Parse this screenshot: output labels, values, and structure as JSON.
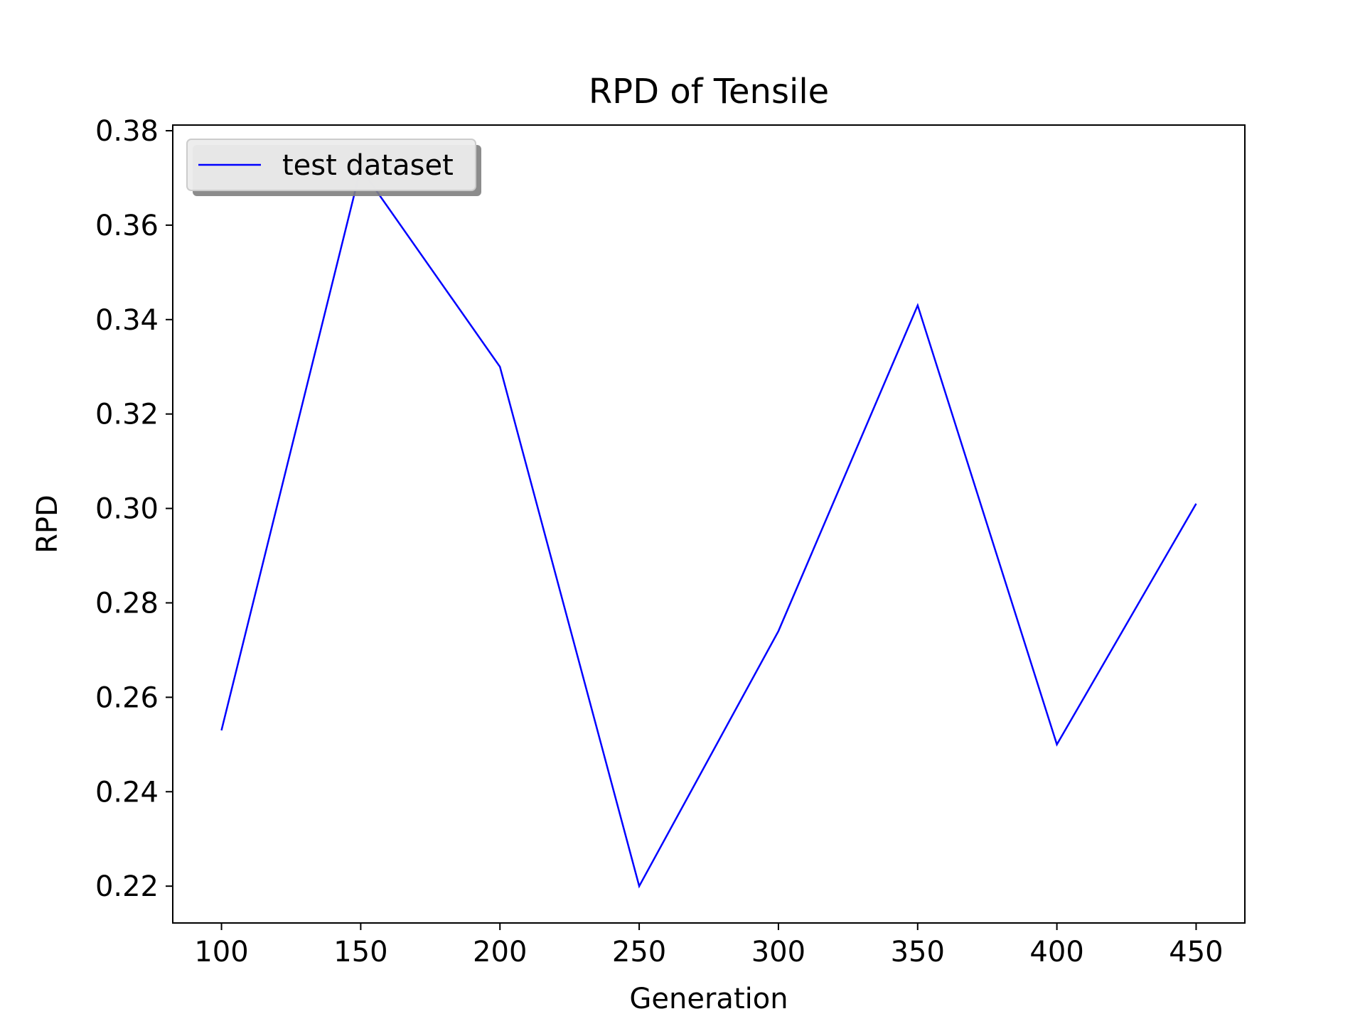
{
  "chart_data": {
    "type": "line",
    "title": "RPD of Tensile",
    "xlabel": "Generation",
    "ylabel": "RPD",
    "x": [
      100,
      150,
      200,
      250,
      300,
      350,
      400,
      450
    ],
    "series": [
      {
        "name": "test dataset",
        "color": "#0000ff",
        "values": [
          0.253,
          0.372,
          0.33,
          0.22,
          0.274,
          0.343,
          0.25,
          0.301
        ]
      }
    ],
    "xlim": [
      82.5,
      467.5
    ],
    "ylim": [
      0.2122,
      0.3812
    ],
    "xticks": [
      100,
      150,
      200,
      250,
      300,
      350,
      400,
      450
    ],
    "xtick_labels": [
      "100",
      "150",
      "200",
      "250",
      "300",
      "350",
      "400",
      "450"
    ],
    "yticks": [
      0.22,
      0.24,
      0.26,
      0.28,
      0.3,
      0.32,
      0.34,
      0.36,
      0.38
    ],
    "ytick_labels": [
      "0.22",
      "0.24",
      "0.26",
      "0.28",
      "0.30",
      "0.32",
      "0.34",
      "0.36",
      "0.38"
    ],
    "grid": false,
    "legend_position": "upper-left"
  }
}
